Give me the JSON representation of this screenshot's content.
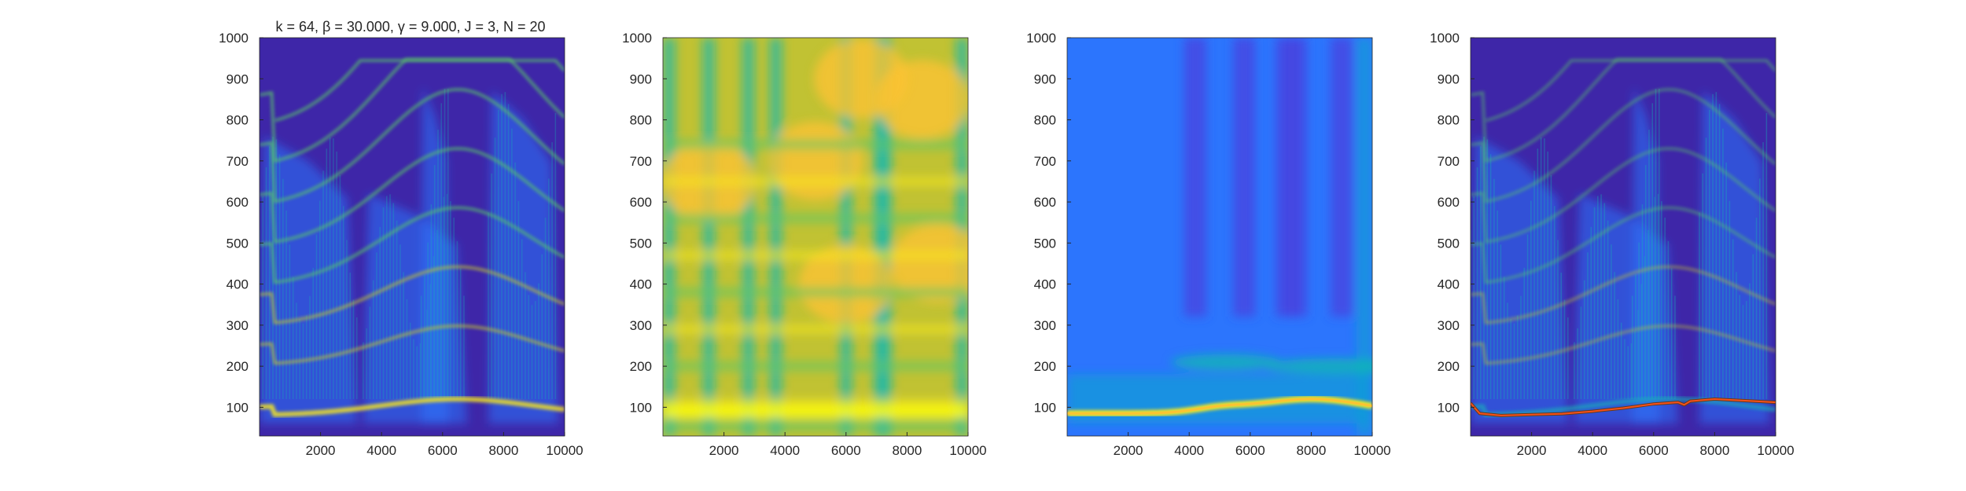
{
  "figure_title": "k = 64, β = 30.000, γ = 9.000, J = 3, N = 20",
  "colors": {
    "parula": [
      "#3e26a8",
      "#4743e0",
      "#2c75fd",
      "#0e9cd6",
      "#12b8b4",
      "#5ac768",
      "#c1c233",
      "#fbc332",
      "#f9e81e",
      "#f9fb0e"
    ],
    "pitch_track_outer": "#6b3b14",
    "pitch_track_inner": "#f5501c"
  },
  "chart_data": [
    {
      "type": "heatmap",
      "title": "k = 64, β = 30.000, γ = 9.000, J = 3, N = 20",
      "x_ticks": [
        2000,
        4000,
        6000,
        8000,
        10000
      ],
      "y_ticks": [
        100,
        200,
        300,
        400,
        500,
        600,
        700,
        800,
        900,
        1000
      ],
      "xlim": [
        0,
        10000
      ],
      "ylim": [
        30,
        1000
      ],
      "colormap": "parula",
      "description_of_content": "sparse spectrogram with harmonic striations"
    },
    {
      "type": "heatmap",
      "title": "",
      "x_ticks": [
        2000,
        4000,
        6000,
        8000,
        10000
      ],
      "y_ticks": [
        100,
        200,
        300,
        400,
        500,
        600,
        700,
        800,
        900,
        1000
      ],
      "xlim": [
        0,
        10000
      ],
      "ylim": [
        30,
        1000
      ],
      "colormap": "parula"
    },
    {
      "type": "heatmap",
      "title": "",
      "x_ticks": [
        2000,
        4000,
        6000,
        8000,
        10000
      ],
      "y_ticks": [
        100,
        200,
        300,
        400,
        500,
        600,
        700,
        800,
        900,
        1000
      ],
      "xlim": [
        0,
        10000
      ],
      "ylim": [
        30,
        1000
      ],
      "colormap": "parula"
    },
    {
      "type": "heatmap",
      "title": "",
      "x_ticks": [
        2000,
        4000,
        6000,
        8000,
        10000
      ],
      "y_ticks": [
        100,
        200,
        300,
        400,
        500,
        600,
        700,
        800,
        900,
        1000
      ],
      "xlim": [
        0,
        10000
      ],
      "ylim": [
        30,
        1000
      ],
      "colormap": "parula",
      "overlay_line": {
        "name": "",
        "x": [
          0,
          300,
          1000,
          2000,
          3000,
          4000,
          5000,
          6000,
          6800,
          7000,
          7200,
          8000,
          9000,
          10000
        ],
        "y": [
          110,
          85,
          80,
          82,
          84,
          90,
          98,
          108,
          112,
          106,
          115,
          120,
          116,
          112
        ]
      }
    }
  ]
}
